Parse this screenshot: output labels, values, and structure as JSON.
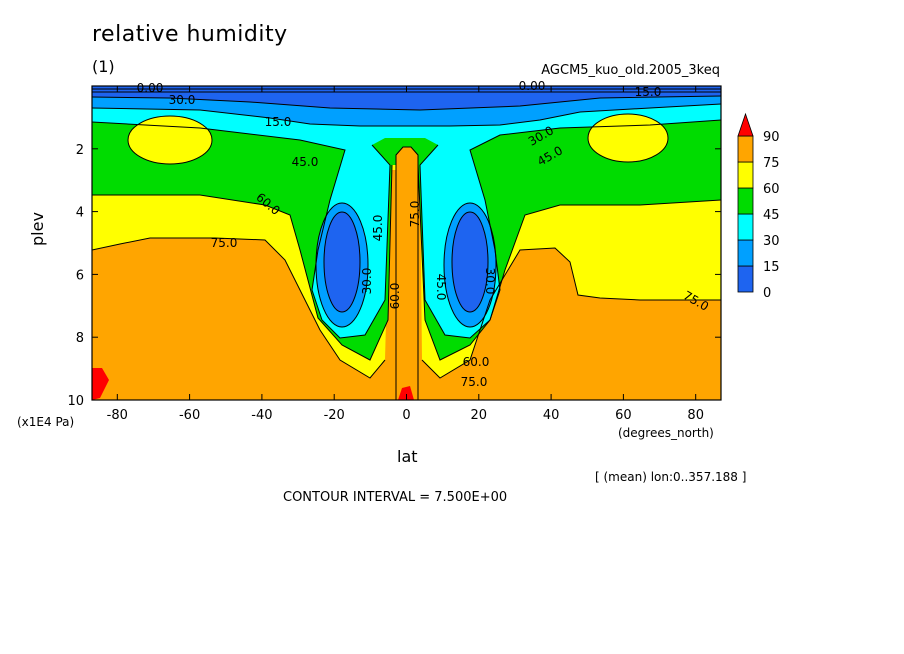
{
  "title": "relative humidity",
  "panel_number": "(1)",
  "run_name": "AGCM5_kuo_old.2005_3keq",
  "x_axis_label": "lat",
  "y_axis_label": "plev",
  "y_unit": "(x1E4 Pa)",
  "x_unit": "(degrees_north)",
  "mean_note": "[ (mean) lon:0..357.188 ]",
  "contour_interval": "CONTOUR INTERVAL = 7.500E+00",
  "colors": {
    "level_0_15": "#1e64f0",
    "level_15_30": "#00a0ff",
    "level_30_45": "#00ffff",
    "level_45_60": "#00dc00",
    "level_60_75": "#ffff00",
    "level_75_90": "#ffa500",
    "level_over_90": "#ff0000"
  },
  "chart_data": {
    "type": "heatmap",
    "xlim": [
      -87,
      87
    ],
    "ylim": [
      10,
      0
    ],
    "x_ticks": [
      "-80",
      "-60",
      "-40",
      "-20",
      "0",
      "20",
      "40",
      "60",
      "80"
    ],
    "y_ticks": [
      "2",
      "4",
      "6",
      "8",
      "10"
    ],
    "colorbar_labels": [
      "90",
      "75",
      "60",
      "45",
      "30",
      "15",
      "0"
    ],
    "contour_labels": [
      "0.00",
      "30.0",
      "15.0",
      "45.0",
      "60.0",
      "75.0",
      "30.0",
      "45.0",
      "60.0",
      "75.0",
      "45.0",
      "30.0",
      "30.0",
      "45.0",
      "15.0",
      "0.00",
      "60.0",
      "75.0",
      "75.0"
    ]
  }
}
